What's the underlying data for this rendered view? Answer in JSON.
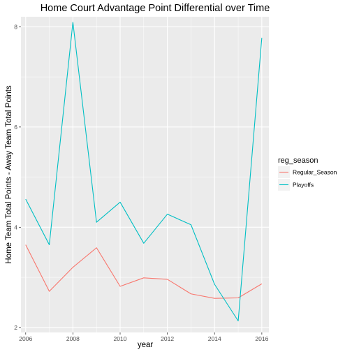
{
  "chart_data": {
    "type": "line",
    "title": "Home Court Advantage Point Differential over Time",
    "xlabel": "year",
    "ylabel": "Home Team Total Points - Away Team Total Points",
    "x": [
      2006,
      2007,
      2008,
      2009,
      2010,
      2011,
      2012,
      2013,
      2014,
      2015,
      2016
    ],
    "xlim": [
      2005.8,
      2016.3
    ],
    "ylim": [
      1.9,
      8.2
    ],
    "xticks": [
      "2006",
      "2008",
      "2010",
      "2012",
      "2014",
      "2016"
    ],
    "yticks": [
      "2",
      "4",
      "6",
      "8"
    ],
    "grid": true,
    "legend_title": "reg_season",
    "legend_position": "right",
    "series": [
      {
        "name": "Regular_Season",
        "color": "#F8766D",
        "values": [
          3.65,
          2.72,
          3.2,
          3.59,
          2.82,
          2.99,
          2.96,
          2.67,
          2.58,
          2.59,
          2.87
        ]
      },
      {
        "name": "Playoffs",
        "color": "#00BFC4",
        "values": [
          4.56,
          3.65,
          8.09,
          4.1,
          4.5,
          3.68,
          4.26,
          4.05,
          2.86,
          2.13,
          7.78
        ]
      }
    ]
  }
}
